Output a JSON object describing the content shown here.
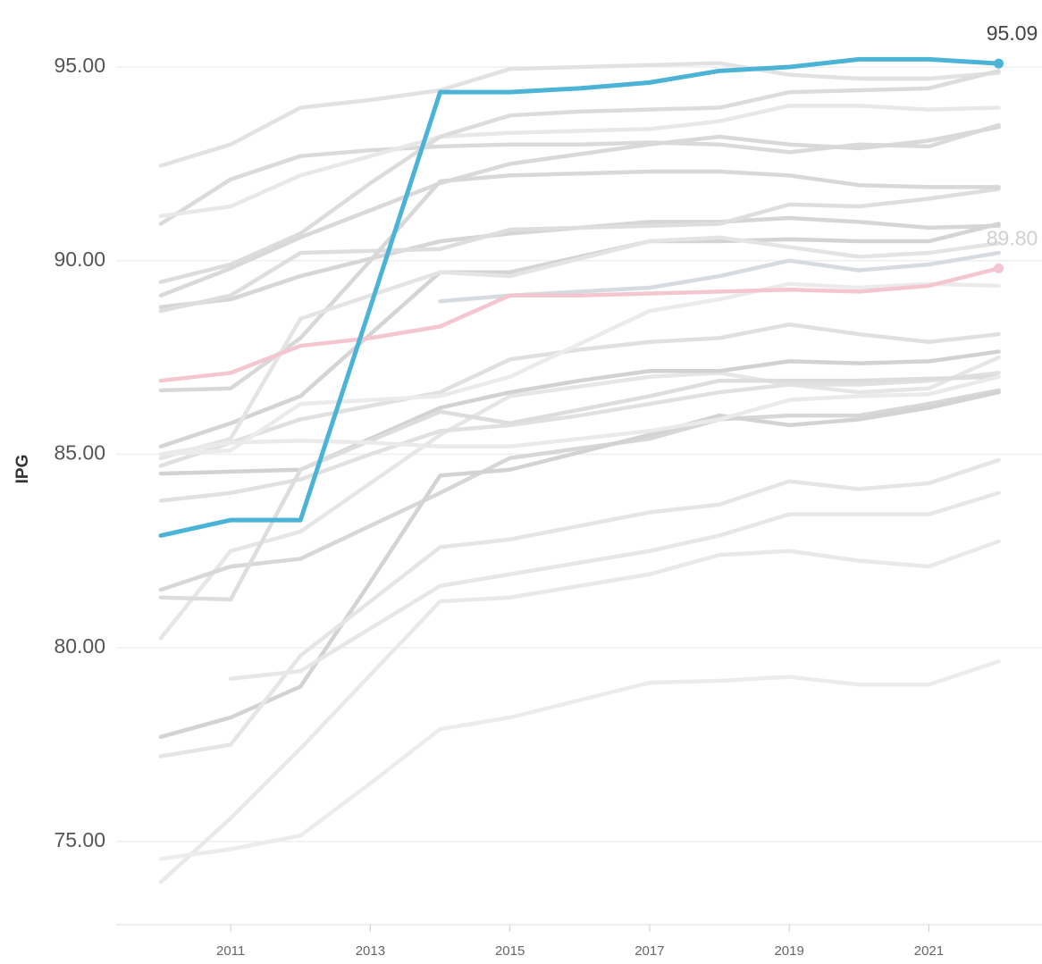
{
  "chart_data": {
    "type": "line",
    "y_label": "IPG",
    "x": [
      2010,
      2011,
      2012,
      2013,
      2014,
      2015,
      2016,
      2017,
      2018,
      2019,
      2020,
      2021,
      2022
    ],
    "xlim": [
      2009.36,
      2022.62
    ],
    "xticks": [
      2011,
      2013,
      2015,
      2017,
      2019,
      2021
    ],
    "ylim": [
      72.85,
      96.5
    ],
    "yticks": [
      {
        "value": 75,
        "label": "75.00"
      },
      {
        "value": 80,
        "label": "80.00"
      },
      {
        "value": 85,
        "label": "85.00"
      },
      {
        "value": 90,
        "label": "90.00"
      },
      {
        "value": 95,
        "label": "95.00"
      }
    ],
    "grid": true,
    "series": [
      {
        "color": "#e2e2e2",
        "values": [
          92.45,
          93.0,
          93.95,
          94.15,
          94.4,
          94.95,
          95.0,
          95.05,
          95.1,
          94.8,
          94.7,
          94.7,
          94.85
        ]
      },
      {
        "color": "#dadada",
        "values": [
          90.95,
          92.1,
          92.7,
          92.85,
          92.95,
          93.0,
          93.0,
          93.05,
          93.0,
          92.8,
          93.0,
          92.95,
          93.5
        ]
      },
      {
        "color": "#e8e8e8",
        "values": [
          91.15,
          91.4,
          92.2,
          92.7,
          93.2,
          93.3,
          93.35,
          93.4,
          93.6,
          94.0,
          94.0,
          93.9,
          93.95
        ]
      },
      {
        "color": "#dcdcdc",
        "values": [
          89.45,
          89.9,
          90.7,
          92.0,
          93.2,
          93.75,
          93.85,
          93.9,
          93.95,
          94.35,
          94.4,
          94.45,
          94.9
        ]
      },
      {
        "color": "#d9d9d9",
        "values": [
          89.1,
          89.8,
          90.6,
          91.3,
          92.0,
          92.5,
          92.75,
          93.0,
          93.2,
          93.0,
          92.9,
          93.1,
          93.45
        ]
      },
      {
        "color": "#d6d6d6",
        "values": [
          88.8,
          89.0,
          89.6,
          90.05,
          90.5,
          90.7,
          90.85,
          91.0,
          91.0,
          91.1,
          91.0,
          90.85,
          90.9
        ]
      },
      {
        "color": "#dedede",
        "values": [
          88.7,
          89.1,
          90.2,
          90.25,
          90.3,
          90.8,
          90.85,
          90.9,
          90.95,
          91.45,
          91.4,
          91.6,
          91.85
        ]
      },
      {
        "color": "#d8d8d8",
        "values": [
          86.65,
          86.7,
          88.0,
          90.0,
          92.05,
          92.2,
          92.25,
          92.3,
          92.3,
          92.2,
          91.95,
          91.9,
          91.9
        ]
      },
      {
        "color": "#d5dbe0",
        "values": [
          null,
          null,
          null,
          null,
          88.95,
          89.1,
          89.2,
          89.3,
          89.6,
          90.0,
          89.75,
          89.9,
          90.2
        ]
      },
      {
        "color": "#d4d4d4",
        "values": [
          85.2,
          85.8,
          86.5,
          88.1,
          89.7,
          89.7,
          90.1,
          90.5,
          90.5,
          90.55,
          90.5,
          90.5,
          90.95
        ]
      },
      {
        "color": "#e6e6e6",
        "values": [
          80.25,
          82.5,
          83.0,
          84.25,
          85.5,
          86.5,
          86.75,
          87.0,
          87.1,
          86.8,
          86.6,
          86.7,
          87.5
        ]
      },
      {
        "color": "#e4e4e4",
        "values": [
          84.9,
          85.4,
          88.5,
          89.1,
          89.7,
          89.6,
          90.05,
          90.5,
          90.6,
          90.35,
          90.1,
          90.2,
          90.45
        ]
      },
      {
        "color": "#e0e0e0",
        "values": [
          84.7,
          85.3,
          85.9,
          86.25,
          86.6,
          87.45,
          87.7,
          87.9,
          88.0,
          88.35,
          88.1,
          87.9,
          88.1
        ]
      },
      {
        "color": "#ebebeb",
        "values": [
          85.0,
          85.1,
          86.3,
          86.4,
          86.5,
          87.0,
          87.85,
          88.7,
          89.0,
          89.4,
          89.3,
          89.4,
          89.35
        ]
      },
      {
        "color": "#d2d2d2",
        "values": [
          84.5,
          84.55,
          84.6,
          85.4,
          86.2,
          86.6,
          86.9,
          87.15,
          87.15,
          87.4,
          87.35,
          87.4,
          87.65
        ]
      },
      {
        "color": "#e1e1e1",
        "values": [
          83.8,
          84.0,
          84.35,
          85.0,
          85.6,
          85.75,
          86.0,
          86.3,
          86.6,
          86.8,
          86.8,
          86.9,
          87.1
        ]
      },
      {
        "color": "#d7d7d7",
        "values": [
          81.5,
          82.1,
          82.3,
          83.15,
          84.0,
          84.9,
          85.15,
          85.4,
          85.9,
          86.0,
          86.0,
          86.3,
          86.65
        ]
      },
      {
        "color": "#dddddd",
        "values": [
          81.3,
          81.25,
          84.6,
          85.35,
          86.1,
          85.8,
          86.15,
          86.5,
          86.9,
          86.9,
          86.9,
          86.95,
          87.0
        ]
      },
      {
        "color": "#d3d3d3",
        "values": [
          77.7,
          78.2,
          79.0,
          81.7,
          84.45,
          84.6,
          85.05,
          85.5,
          86.0,
          85.75,
          85.9,
          86.2,
          86.6
        ]
      },
      {
        "color": "#e5e5e5",
        "values": [
          77.2,
          77.5,
          79.8,
          81.2,
          82.6,
          82.8,
          83.15,
          83.5,
          83.7,
          84.3,
          84.1,
          84.25,
          84.85
        ]
      },
      {
        "color": "#e7e7e7",
        "values": [
          null,
          79.2,
          79.4,
          80.5,
          81.6,
          81.9,
          82.2,
          82.5,
          82.9,
          83.45,
          83.45,
          83.45,
          84.0
        ]
      },
      {
        "color": "#e9e9e9",
        "values": [
          73.95,
          75.6,
          77.4,
          79.3,
          81.2,
          81.3,
          81.6,
          81.9,
          82.4,
          82.5,
          82.25,
          82.1,
          82.75
        ]
      },
      {
        "color": "#ececec",
        "values": [
          74.55,
          74.8,
          75.15,
          76.5,
          77.9,
          78.2,
          78.65,
          79.1,
          79.15,
          79.25,
          79.05,
          79.05,
          79.65
        ]
      },
      {
        "color": "#eaeaea",
        "values": [
          85.0,
          85.3,
          85.35,
          85.3,
          85.2,
          85.2,
          85.4,
          85.6,
          85.9,
          86.4,
          86.5,
          86.55,
          87.0
        ]
      },
      {
        "color": "#f4c6cf",
        "values": [
          86.9,
          87.1,
          87.8,
          88.0,
          88.3,
          89.1,
          89.1,
          89.15,
          89.2,
          89.25,
          89.2,
          89.35,
          89.8
        ],
        "value_labels": [
          null,
          null,
          null,
          null,
          null,
          null,
          null,
          null,
          null,
          null,
          null,
          null,
          "89.80"
        ],
        "label_color": "#d0d0d0"
      },
      {
        "color": "#4bb3d6",
        "values": [
          82.9,
          83.3,
          83.3,
          88.8,
          94.35,
          94.35,
          94.45,
          94.6,
          94.9,
          95.0,
          95.2,
          95.2,
          95.09
        ],
        "value_labels": [
          null,
          null,
          null,
          null,
          null,
          null,
          null,
          null,
          null,
          null,
          null,
          null,
          "95.09"
        ],
        "label_color": "#444444"
      }
    ]
  }
}
